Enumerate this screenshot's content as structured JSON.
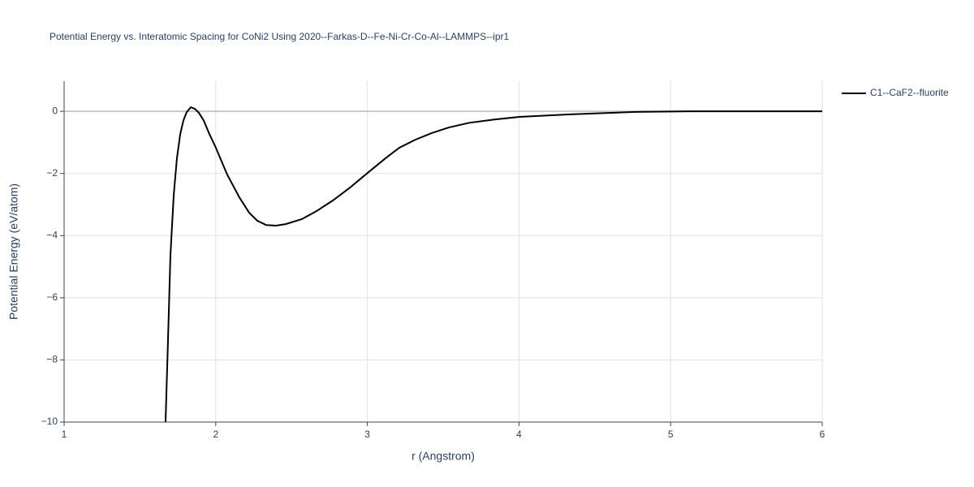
{
  "chart_data": {
    "type": "line",
    "title": "Potential Energy vs. Interatomic Spacing for CoNi2 Using 2020--Farkas-D--Fe-Ni-Cr-Co-Al--LAMMPS--ipr1",
    "x_label": "r (Angstrom)",
    "y_label": "Potential Energy (eV/atom)",
    "xlim": [
      1,
      6
    ],
    "ylim": [
      -10,
      0.97
    ],
    "xticks": [
      1,
      2,
      3,
      4,
      5,
      6
    ],
    "yticks": [
      {
        "value": -10,
        "label": "−10"
      },
      {
        "value": -8,
        "label": "−8"
      },
      {
        "value": -6,
        "label": "−6"
      },
      {
        "value": -4,
        "label": "−4"
      },
      {
        "value": -2,
        "label": "−2"
      },
      0
    ],
    "grid": true,
    "legend": "top-right",
    "series": [
      {
        "name": "C1--CaF2--fluorite",
        "color": "#000000",
        "x": [
          1.669,
          1.685,
          1.701,
          1.723,
          1.744,
          1.766,
          1.787,
          1.808,
          1.835,
          1.862,
          1.889,
          1.92,
          1.958,
          1.996,
          2.076,
          2.156,
          2.22,
          2.274,
          2.333,
          2.397,
          2.461,
          2.568,
          2.665,
          2.772,
          2.879,
          3.002,
          3.12,
          3.211,
          3.318,
          3.425,
          3.537,
          3.671,
          3.843,
          4.003,
          4.324,
          4.77,
          5.13,
          6
        ],
        "values": [
          -10,
          -7.39,
          -4.65,
          -2.69,
          -1.51,
          -0.73,
          -0.29,
          -0.03,
          0.13,
          0.08,
          -0.05,
          -0.29,
          -0.73,
          -1.12,
          -2.04,
          -2.77,
          -3.26,
          -3.52,
          -3.66,
          -3.68,
          -3.63,
          -3.47,
          -3.21,
          -2.87,
          -2.48,
          -1.98,
          -1.51,
          -1.17,
          -0.91,
          -0.7,
          -0.52,
          -0.37,
          -0.26,
          -0.18,
          -0.1,
          -0.02,
          0,
          0
        ]
      }
    ]
  }
}
